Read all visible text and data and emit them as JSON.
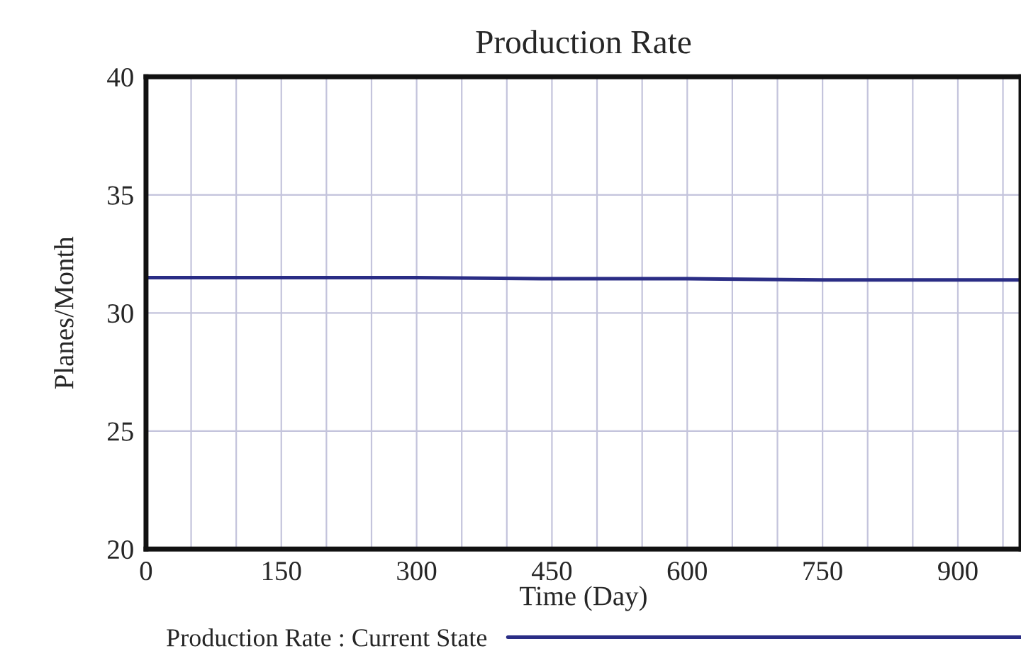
{
  "chart_data": {
    "type": "line",
    "title": "Production Rate",
    "xlabel": "Time (Day)",
    "ylabel": "Planes/Month",
    "x": [
      0,
      150,
      300,
      450,
      600,
      750,
      900,
      970
    ],
    "series": [
      {
        "name": "Production Rate : Current State",
        "color": "#2a2d85",
        "values": [
          31.5,
          31.5,
          31.5,
          31.45,
          31.45,
          31.4,
          31.4,
          31.4
        ]
      }
    ],
    "xlim": [
      0,
      970
    ],
    "ylim": [
      20,
      40
    ],
    "xticks": [
      0,
      {
        "value": 50,
        "label": null
      },
      {
        "value": 100,
        "label": null
      },
      150,
      {
        "value": 200,
        "label": null
      },
      {
        "value": 250,
        "label": null
      },
      300,
      {
        "value": 350,
        "label": null
      },
      {
        "value": 400,
        "label": null
      },
      450,
      {
        "value": 500,
        "label": null
      },
      {
        "value": 550,
        "label": null
      },
      600,
      {
        "value": 650,
        "label": null
      },
      {
        "value": 700,
        "label": null
      },
      750,
      {
        "value": 800,
        "label": null
      },
      {
        "value": 850,
        "label": null
      },
      900,
      {
        "value": 950,
        "label": null
      }
    ],
    "yticks": [
      20,
      25,
      30,
      35,
      40
    ],
    "grid": true,
    "legend": "bottom",
    "marker": "none",
    "line_style": "solid"
  }
}
